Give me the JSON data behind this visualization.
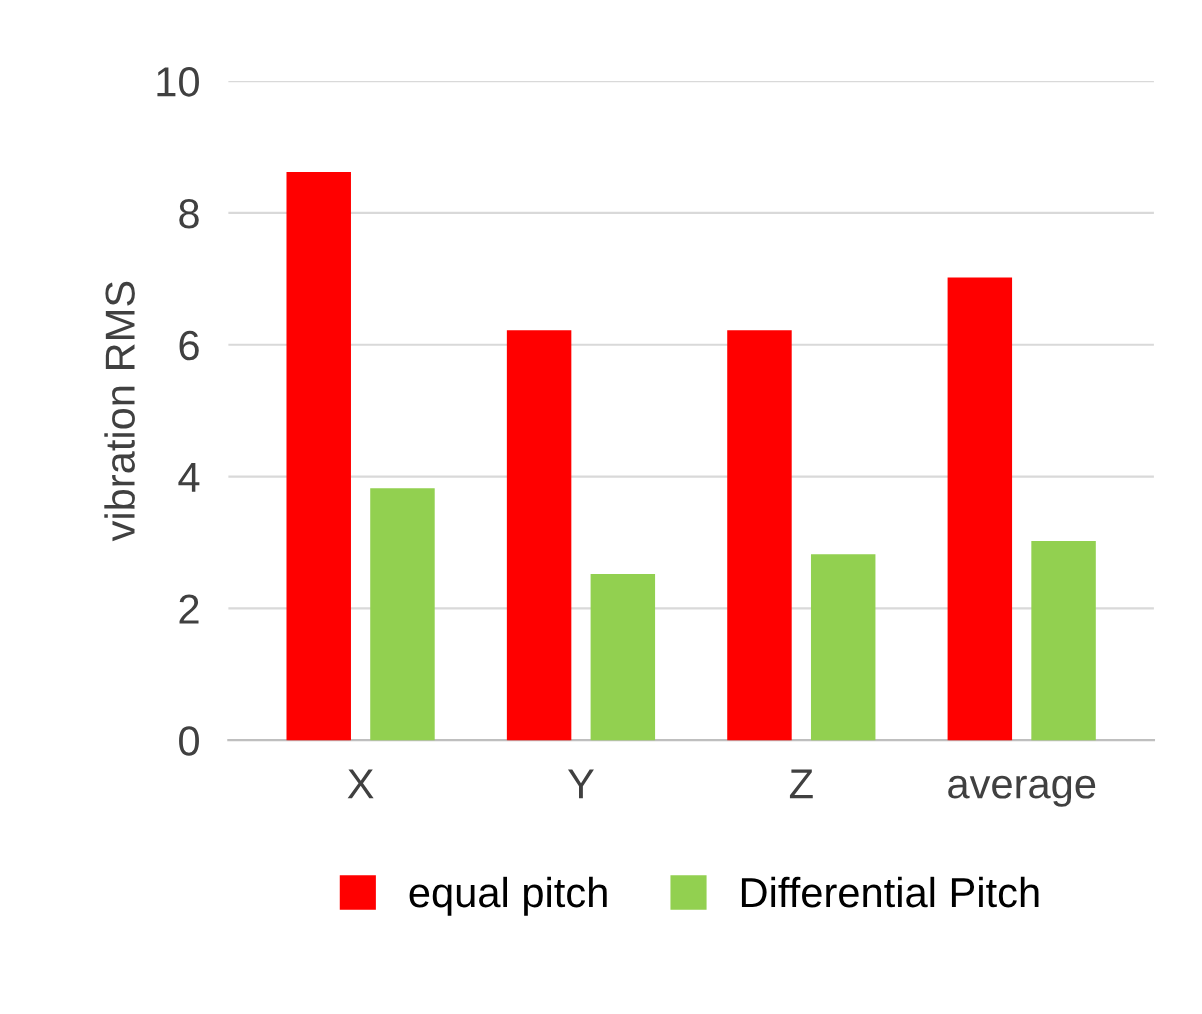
{
  "chart_data": {
    "type": "bar",
    "ylabel": "vibration RMS",
    "categories": [
      "X",
      "Y",
      "Z",
      "average"
    ],
    "series": [
      {
        "name": "equal pitch",
        "color": "#ff0000",
        "values": [
          8.6,
          6.2,
          6.2,
          7.0
        ]
      },
      {
        "name": "Differential Pitch",
        "color": "#92d050",
        "values": [
          3.8,
          2.5,
          2.8,
          3.0
        ]
      }
    ],
    "ylim": [
      0,
      10
    ],
    "yticks": [
      0,
      2,
      4,
      6,
      8,
      10
    ],
    "grid": "y",
    "legend": "bottom"
  }
}
